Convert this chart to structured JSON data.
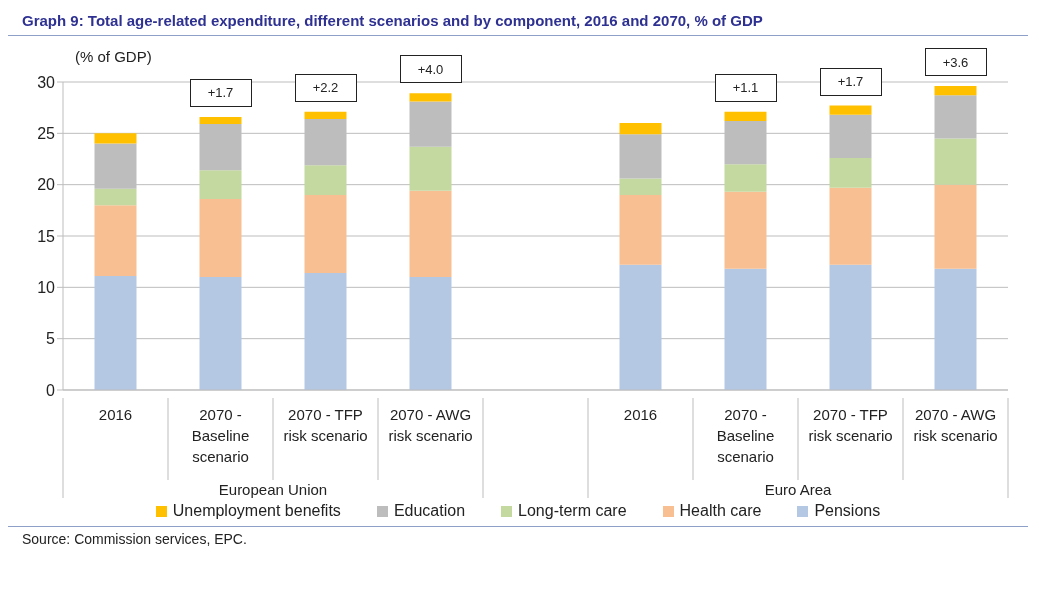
{
  "chart_data": {
    "type": "bar",
    "stacked": true,
    "title": "Graph 9:  Total age-related expenditure, different scenarios and by component, 2016 and 2070, % of GDP",
    "ylabel": "(% of GDP)",
    "categories": [
      "2016",
      "2070 - Baseline scenario",
      "2070 - TFP risk scenario",
      "2070 - AWG risk scenario",
      null,
      "2016",
      "2070 - Baseline scenario",
      "2070 - TFP risk scenario",
      "2070 - AWG risk scenario"
    ],
    "series": [
      {
        "name": "Pensions",
        "color": "#b4c8e4",
        "values": [
          11.1,
          11.0,
          11.4,
          11.0,
          null,
          12.2,
          11.8,
          12.2,
          11.8
        ]
      },
      {
        "name": "Health care",
        "color": "#f8bf92",
        "values": [
          6.9,
          7.6,
          7.6,
          8.4,
          null,
          6.8,
          7.5,
          7.5,
          8.2
        ]
      },
      {
        "name": "Long-term care",
        "color": "#c4d9a0",
        "values": [
          1.6,
          2.8,
          2.9,
          4.3,
          null,
          1.6,
          2.7,
          2.9,
          4.5
        ]
      },
      {
        "name": "Education",
        "color": "#bdbdbd",
        "values": [
          4.4,
          4.5,
          4.5,
          4.4,
          null,
          4.3,
          4.2,
          4.2,
          4.2
        ]
      },
      {
        "name": "Unemployment benefits",
        "color": "#ffc000",
        "values": [
          1.0,
          0.7,
          0.7,
          0.8,
          null,
          1.1,
          0.9,
          0.9,
          0.9
        ]
      }
    ],
    "ylim": [
      0,
      30
    ],
    "yticks": [
      0,
      5,
      10,
      15,
      20,
      25,
      30
    ],
    "grid": "y",
    "legend": "bottom",
    "annotations": [
      "+1.7",
      "+2.2",
      "+4.0",
      "+1.1",
      "+1.7",
      "+3.6",
      "European Union",
      "Euro Area",
      "Source: Commission services, EPC."
    ]
  }
}
